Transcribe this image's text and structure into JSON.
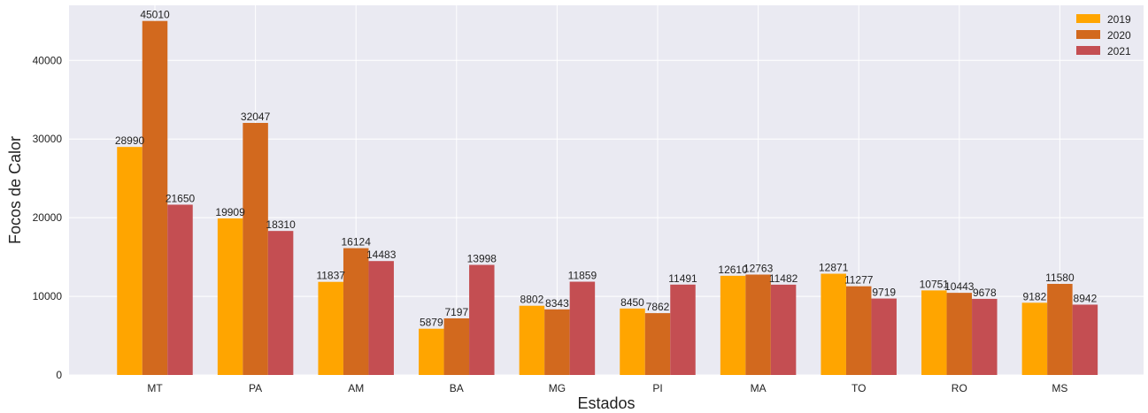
{
  "chart_data": {
    "type": "bar",
    "title": "",
    "xlabel": "Estados",
    "ylabel": "Focos de Calor",
    "categories": [
      "MT",
      "PA",
      "AM",
      "BA",
      "MG",
      "PI",
      "MA",
      "TO",
      "RO",
      "MS"
    ],
    "series": [
      {
        "name": "2019",
        "color": "#FFA500",
        "values": [
          28990,
          19909,
          11837,
          5879,
          8802,
          8450,
          12610,
          12871,
          10751,
          9182
        ]
      },
      {
        "name": "2020",
        "color": "#D2691E",
        "values": [
          45010,
          32047,
          16124,
          7197,
          8343,
          7862,
          12763,
          11277,
          10443,
          11580
        ]
      },
      {
        "name": "2021",
        "color": "#C44E52",
        "values": [
          21650,
          18310,
          14483,
          13998,
          11859,
          11491,
          11482,
          9719,
          9678,
          8942
        ]
      }
    ],
    "ylim": [
      0,
      47000
    ],
    "yticks": [
      0,
      10000,
      20000,
      30000,
      40000
    ],
    "grid": true,
    "legend_position": "top-right",
    "plot_background": "#EAEAF2"
  }
}
